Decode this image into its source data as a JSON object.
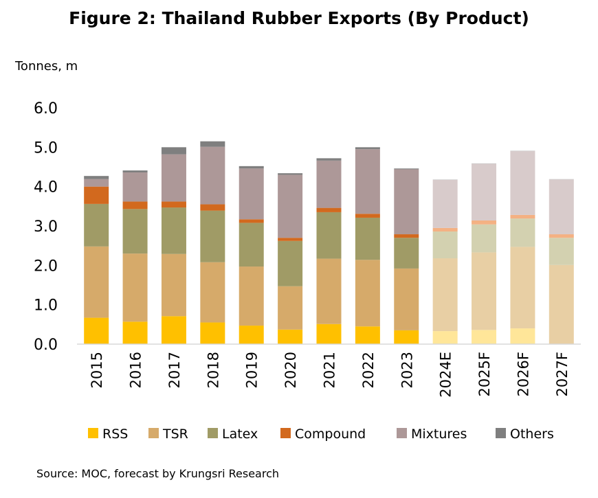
{
  "title": "Figure 2: Thailand Rubber Exports (By Product)",
  "unit_label": "Tonnes, m",
  "source": "Source:  MOC, forecast by Krungsri Research",
  "chart_data": {
    "type": "bar",
    "stacked": true,
    "title": "Figure 2: Thailand Rubber Exports (By Product)",
    "ylabel": "Tonnes, m",
    "ylim": [
      0,
      6
    ],
    "yticks": [
      "0.0",
      "1.0",
      "2.0",
      "3.0",
      "4.0",
      "5.0",
      "6.0"
    ],
    "ytick_values": [
      0,
      1,
      2,
      3,
      4,
      5,
      6
    ],
    "grid": false,
    "legend_position": "bottom",
    "categories": [
      "2015",
      "2016",
      "2017",
      "2018",
      "2019",
      "2020",
      "2021",
      "2022",
      "2023",
      "2024E",
      "2025F",
      "2026F",
      "2027F"
    ],
    "forecast_categories": [
      "2024E",
      "2025F",
      "2026F",
      "2027F"
    ],
    "series": [
      {
        "name": "RSS",
        "color": "#FFC000",
        "forecast_color": "#FFE699",
        "values": [
          0.67,
          0.57,
          0.71,
          0.55,
          0.47,
          0.37,
          0.51,
          0.45,
          0.35,
          0.33,
          0.36,
          0.4,
          0.0
        ]
      },
      {
        "name": "TSR",
        "color": "#D6AA6A",
        "forecast_color": "#E8CFA4",
        "values": [
          1.81,
          1.73,
          1.58,
          1.53,
          1.5,
          1.1,
          1.66,
          1.69,
          1.57,
          1.85,
          1.97,
          2.07,
          2.01
        ]
      },
      {
        "name": "Latex",
        "color": "#A09B66",
        "forecast_color": "#D3D1B0",
        "values": [
          1.08,
          1.13,
          1.18,
          1.31,
          1.11,
          1.15,
          1.18,
          1.07,
          0.78,
          0.68,
          0.71,
          0.72,
          0.69
        ]
      },
      {
        "name": "Compound",
        "color": "#D2691E",
        "forecast_color": "#F4B183",
        "values": [
          0.44,
          0.19,
          0.15,
          0.16,
          0.09,
          0.08,
          0.11,
          0.1,
          0.09,
          0.09,
          0.1,
          0.09,
          0.09
        ]
      },
      {
        "name": "Mixtures",
        "color": "#AD9898",
        "forecast_color": "#D8CBCB",
        "values": [
          0.19,
          0.74,
          1.2,
          1.46,
          1.29,
          1.6,
          1.2,
          1.64,
          1.65,
          1.22,
          1.44,
          1.62,
          1.39
        ]
      },
      {
        "name": "Others",
        "color": "#7F7F7F",
        "forecast_color": "#BFBFBF",
        "values": [
          0.08,
          0.05,
          0.18,
          0.14,
          0.06,
          0.04,
          0.06,
          0.05,
          0.02,
          0.01,
          0.01,
          0.01,
          0.01
        ]
      }
    ]
  }
}
